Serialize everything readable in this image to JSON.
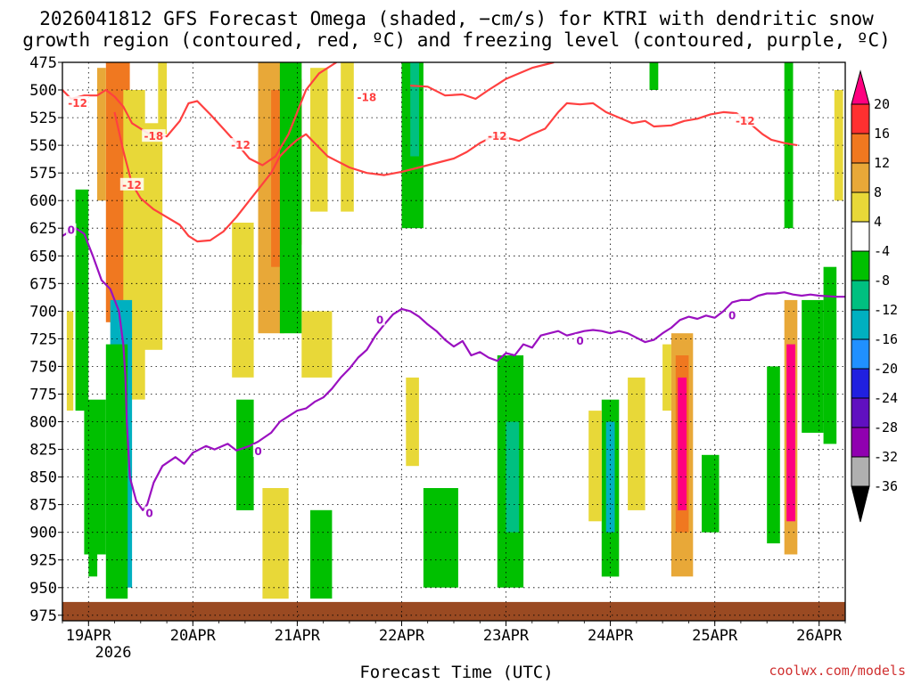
{
  "chart_data": {
    "type": "heatmap",
    "title": "2026041812 GFS Forecast Omega (shaded, −cm/s) for KTRI with dendritic snow",
    "subtitle": "growth region (contoured, red, ºC) and freezing level (contoured, purple, ºC)",
    "xlabel": "Forecast Time (UTC)",
    "ylabel": "",
    "credit": "coolwx.com/models",
    "x_range_hours": [
      0,
      180
    ],
    "y_range_hpa": [
      475,
      980
    ],
    "x_ticks": [
      {
        "label": "19APR",
        "hour": 6
      },
      {
        "label": "20APR",
        "hour": 30
      },
      {
        "label": "21APR",
        "hour": 54
      },
      {
        "label": "22APR",
        "hour": 78
      },
      {
        "label": "23APR",
        "hour": 102
      },
      {
        "label": "24APR",
        "hour": 126
      },
      {
        "label": "25APR",
        "hour": 150
      },
      {
        "label": "26APR",
        "hour": 174
      }
    ],
    "year_label": "2026",
    "y_ticks": [
      475,
      500,
      525,
      550,
      575,
      600,
      625,
      650,
      675,
      700,
      725,
      750,
      775,
      800,
      825,
      850,
      875,
      900,
      925,
      950,
      975
    ],
    "colorbar": {
      "ticks": [
        20,
        16,
        12,
        8,
        4,
        -4,
        -8,
        -12,
        -16,
        -20,
        -24,
        -28,
        -32,
        -36
      ],
      "colors": [
        "#ff0080",
        "#ff3030",
        "#f07820",
        "#e8a838",
        "#e8d838",
        "#ffffff",
        "#00c000",
        "#00c080",
        "#00b0c0",
        "#2090ff",
        "#2020e0",
        "#6010c0",
        "#9000b0",
        "#b0b0b0",
        "#000000"
      ]
    },
    "omega_cells": [
      {
        "t0": 11.5,
        "t1": 13.5,
        "p0": 475,
        "p1": 690,
        "v": 20
      },
      {
        "t0": 10,
        "t1": 15.5,
        "p0": 475,
        "p1": 710,
        "v": 14
      },
      {
        "t0": 8,
        "t1": 10,
        "p0": 480,
        "p1": 600,
        "v": 8
      },
      {
        "t0": 15.5,
        "t1": 23,
        "p0": 530,
        "p1": 735,
        "v": 6
      },
      {
        "t0": 14,
        "t1": 19,
        "p0": 500,
        "p1": 780,
        "v": 6
      },
      {
        "t0": 22,
        "t1": 24,
        "p0": 475,
        "p1": 540,
        "v": 6
      },
      {
        "t0": 12,
        "t1": 14.5,
        "p0": 800,
        "p1": 910,
        "v": -24
      },
      {
        "t0": 11,
        "t1": 16,
        "p0": 690,
        "p1": 950,
        "v": -16
      },
      {
        "t0": 10,
        "t1": 15,
        "p0": 730,
        "p1": 960,
        "v": -8
      },
      {
        "t0": 3,
        "t1": 6,
        "p0": 590,
        "p1": 790,
        "v": -8
      },
      {
        "t0": 5,
        "t1": 10,
        "p0": 780,
        "p1": 920,
        "v": -5
      },
      {
        "t0": 1,
        "t1": 2.5,
        "p0": 700,
        "p1": 790,
        "v": 6
      },
      {
        "t0": 6,
        "t1": 8,
        "p0": 820,
        "p1": 940,
        "v": -8
      },
      {
        "t0": 45,
        "t1": 51,
        "p0": 475,
        "p1": 720,
        "v": 8
      },
      {
        "t0": 52,
        "t1": 55,
        "p0": 475,
        "p1": 700,
        "v": 10
      },
      {
        "t0": 54,
        "t1": 55,
        "p0": 490,
        "p1": 640,
        "v": 16
      },
      {
        "t0": 48,
        "t1": 50,
        "p0": 500,
        "p1": 660,
        "v": 12
      },
      {
        "t0": 57,
        "t1": 61,
        "p0": 480,
        "p1": 610,
        "v": 6
      },
      {
        "t0": 39,
        "t1": 44,
        "p0": 620,
        "p1": 760,
        "v": 6
      },
      {
        "t0": 55,
        "t1": 62,
        "p0": 700,
        "p1": 760,
        "v": 6
      },
      {
        "t0": 50,
        "t1": 55,
        "p0": 475,
        "p1": 720,
        "v": -8
      },
      {
        "t0": 40,
        "t1": 44,
        "p0": 780,
        "p1": 880,
        "v": -8
      },
      {
        "t0": 46,
        "t1": 52,
        "p0": 860,
        "p1": 960,
        "v": 6
      },
      {
        "t0": 57,
        "t1": 62,
        "p0": 880,
        "p1": 960,
        "v": -8
      },
      {
        "t0": 64,
        "t1": 67,
        "p0": 475,
        "p1": 610,
        "v": 6
      },
      {
        "t0": 78,
        "t1": 83,
        "p0": 475,
        "p1": 625,
        "v": -8
      },
      {
        "t0": 80,
        "t1": 82,
        "p0": 475,
        "p1": 560,
        "v": -12
      },
      {
        "t0": 79,
        "t1": 82,
        "p0": 760,
        "p1": 840,
        "v": 6
      },
      {
        "t0": 83,
        "t1": 91,
        "p0": 860,
        "p1": 950,
        "v": -8
      },
      {
        "t0": 100,
        "t1": 106,
        "p0": 740,
        "p1": 950,
        "v": -8
      },
      {
        "t0": 102,
        "t1": 105,
        "p0": 800,
        "p1": 900,
        "v": -12
      },
      {
        "t0": 124,
        "t1": 128,
        "p0": 780,
        "p1": 940,
        "v": -8
      },
      {
        "t0": 125,
        "t1": 127,
        "p0": 800,
        "p1": 900,
        "v": -16
      },
      {
        "t0": 121,
        "t1": 124,
        "p0": 790,
        "p1": 890,
        "v": 6
      },
      {
        "t0": 130,
        "t1": 134,
        "p0": 760,
        "p1": 880,
        "v": 6
      },
      {
        "t0": 138,
        "t1": 140,
        "p0": 730,
        "p1": 790,
        "v": 6
      },
      {
        "t0": 140,
        "t1": 145,
        "p0": 720,
        "p1": 940,
        "v": 8
      },
      {
        "t0": 141,
        "t1": 144,
        "p0": 740,
        "p1": 900,
        "v": 14
      },
      {
        "t0": 141.5,
        "t1": 143.5,
        "p0": 760,
        "p1": 880,
        "v": 20
      },
      {
        "t0": 147,
        "t1": 151,
        "p0": 830,
        "p1": 900,
        "v": -8
      },
      {
        "t0": 135,
        "t1": 137,
        "p0": 475,
        "p1": 500,
        "v": -8
      },
      {
        "t0": 166,
        "t1": 168,
        "p0": 475,
        "p1": 625,
        "v": -8
      },
      {
        "t0": 162,
        "t1": 165,
        "p0": 750,
        "p1": 910,
        "v": -8
      },
      {
        "t0": 166,
        "t1": 169,
        "p0": 690,
        "p1": 920,
        "v": 8
      },
      {
        "t0": 166.5,
        "t1": 168.5,
        "p0": 730,
        "p1": 890,
        "v": 20
      },
      {
        "t0": 170,
        "t1": 175,
        "p0": 690,
        "p1": 810,
        "v": -8
      },
      {
        "t0": 175,
        "t1": 178,
        "p0": 660,
        "p1": 820,
        "v": -8
      },
      {
        "t0": 177.5,
        "t1": 179.5,
        "p0": 500,
        "p1": 600,
        "v": 6
      }
    ],
    "ground_top_hpa": 963,
    "series": [
      {
        "name": "-12 C isotherm (upper)",
        "color": "#ff4040",
        "points": [
          [
            0,
            500
          ],
          [
            2,
            508
          ],
          [
            5,
            505
          ],
          [
            8,
            505
          ],
          [
            10,
            500
          ],
          [
            12,
            506
          ],
          [
            14,
            515
          ],
          [
            16,
            530
          ],
          [
            20,
            540
          ],
          [
            24,
            542
          ],
          [
            27,
            528
          ],
          [
            29,
            512
          ],
          [
            31,
            510
          ],
          [
            34,
            522
          ],
          [
            37,
            535
          ],
          [
            40,
            548
          ],
          [
            43,
            562
          ],
          [
            46,
            568
          ],
          [
            49,
            560
          ],
          [
            52,
            540
          ],
          [
            54,
            520
          ],
          [
            56,
            500
          ],
          [
            59,
            485
          ],
          [
            63,
            475
          ]
        ]
      },
      {
        "name": "-12 C isotherm (lower)",
        "color": "#ff4040",
        "points": [
          [
            12,
            520
          ],
          [
            14,
            555
          ],
          [
            16,
            585
          ],
          [
            18,
            598
          ],
          [
            21,
            608
          ],
          [
            24,
            615
          ],
          [
            27,
            622
          ],
          [
            29,
            632
          ],
          [
            31,
            637
          ],
          [
            34,
            636
          ],
          [
            37,
            628
          ],
          [
            40,
            615
          ],
          [
            43,
            600
          ],
          [
            46,
            585
          ],
          [
            48,
            575
          ],
          [
            50,
            560
          ],
          [
            52,
            552
          ],
          [
            54,
            545
          ],
          [
            56,
            540
          ],
          [
            58,
            548
          ],
          [
            61,
            560
          ],
          [
            66,
            570
          ],
          [
            70,
            575
          ],
          [
            74,
            577
          ],
          [
            78,
            574
          ],
          [
            82,
            570
          ],
          [
            86,
            566
          ],
          [
            90,
            562
          ],
          [
            93,
            556
          ],
          [
            96,
            548
          ],
          [
            99,
            542
          ],
          [
            102,
            543
          ],
          [
            105,
            546
          ],
          [
            108,
            540
          ],
          [
            111,
            535
          ],
          [
            114,
            520
          ],
          [
            116,
            512
          ],
          [
            119,
            513
          ],
          [
            122,
            512
          ],
          [
            125,
            520
          ],
          [
            128,
            525
          ],
          [
            131,
            530
          ],
          [
            134,
            528
          ],
          [
            136,
            533
          ],
          [
            140,
            532
          ],
          [
            143,
            528
          ],
          [
            146,
            526
          ],
          [
            149,
            522
          ],
          [
            152,
            520
          ],
          [
            155,
            521
          ],
          [
            158,
            530
          ],
          [
            161,
            540
          ],
          [
            163,
            545
          ],
          [
            166,
            548
          ],
          [
            169,
            550
          ]
        ]
      },
      {
        "name": "-18 C isotherm",
        "color": "#ff4040",
        "points": [
          [
            80,
            496
          ],
          [
            84,
            497
          ],
          [
            88,
            505
          ],
          [
            92,
            504
          ],
          [
            95,
            508
          ],
          [
            98,
            500
          ],
          [
            100,
            495
          ],
          [
            102,
            490
          ],
          [
            105,
            485
          ],
          [
            108,
            480
          ],
          [
            111,
            477
          ],
          [
            113,
            475
          ]
        ]
      },
      {
        "name": "0 C freezing level",
        "color": "#9a10c0",
        "points": [
          [
            0,
            632
          ],
          [
            3,
            625
          ],
          [
            5,
            630
          ],
          [
            7,
            650
          ],
          [
            9,
            672
          ],
          [
            11,
            680
          ],
          [
            13,
            700
          ],
          [
            14,
            730
          ],
          [
            14.5,
            760
          ],
          [
            14.8,
            800
          ],
          [
            15.5,
            850
          ],
          [
            17,
            872
          ],
          [
            18.5,
            880
          ],
          [
            19.5,
            875
          ],
          [
            21,
            855
          ],
          [
            23,
            840
          ],
          [
            26,
            832
          ],
          [
            28,
            838
          ],
          [
            30,
            828
          ],
          [
            33,
            822
          ],
          [
            35,
            825
          ],
          [
            38,
            820
          ],
          [
            40,
            826
          ],
          [
            43,
            822
          ],
          [
            45,
            818
          ],
          [
            48,
            810
          ],
          [
            50,
            800
          ],
          [
            52,
            795
          ],
          [
            54,
            790
          ],
          [
            56,
            788
          ],
          [
            58,
            782
          ],
          [
            60,
            778
          ],
          [
            62,
            770
          ],
          [
            64,
            760
          ],
          [
            66,
            752
          ],
          [
            68,
            742
          ],
          [
            70,
            735
          ],
          [
            72,
            722
          ],
          [
            74,
            712
          ],
          [
            76,
            703
          ],
          [
            78,
            698
          ],
          [
            80,
            700
          ],
          [
            82,
            705
          ],
          [
            84,
            712
          ],
          [
            86,
            718
          ],
          [
            88,
            726
          ],
          [
            90,
            732
          ],
          [
            92,
            727
          ],
          [
            94,
            740
          ],
          [
            96,
            737
          ],
          [
            98,
            742
          ],
          [
            100,
            745
          ],
          [
            102,
            738
          ],
          [
            104,
            740
          ],
          [
            106,
            730
          ],
          [
            108,
            733
          ],
          [
            110,
            722
          ],
          [
            112,
            720
          ],
          [
            114,
            718
          ],
          [
            116,
            722
          ],
          [
            118,
            720
          ],
          [
            120,
            718
          ],
          [
            122,
            717
          ],
          [
            124,
            718
          ],
          [
            126,
            720
          ],
          [
            128,
            718
          ],
          [
            130,
            720
          ],
          [
            132,
            724
          ],
          [
            134,
            728
          ],
          [
            136,
            726
          ],
          [
            138,
            720
          ],
          [
            140,
            715
          ],
          [
            142,
            708
          ],
          [
            144,
            705
          ],
          [
            146,
            707
          ],
          [
            148,
            704
          ],
          [
            150,
            706
          ],
          [
            152,
            700
          ],
          [
            154,
            692
          ],
          [
            156,
            690
          ],
          [
            158,
            690
          ],
          [
            160,
            686
          ],
          [
            162,
            684
          ],
          [
            164,
            684
          ],
          [
            166,
            683
          ],
          [
            168,
            685
          ],
          [
            170,
            686
          ],
          [
            172,
            685
          ],
          [
            174,
            686
          ],
          [
            178,
            687
          ],
          [
            180,
            687
          ]
        ]
      }
    ],
    "contour_labels": [
      {
        "text": "-12",
        "t": 3.5,
        "p": 512,
        "color": "#ff4040"
      },
      {
        "text": "-18",
        "t": 21,
        "p": 542,
        "color": "#ff4040"
      },
      {
        "text": "-12",
        "t": 16,
        "p": 586,
        "color": "#ff4040"
      },
      {
        "text": "-12",
        "t": 41,
        "p": 550,
        "color": "#ff4040"
      },
      {
        "text": "-18",
        "t": 70,
        "p": 507,
        "color": "#ff4040"
      },
      {
        "text": "-12",
        "t": 100,
        "p": 542,
        "color": "#ff4040"
      },
      {
        "text": "-12",
        "t": 157,
        "p": 528,
        "color": "#ff4040"
      },
      {
        "text": "0",
        "t": 2,
        "p": 627,
        "color": "#9a10c0"
      },
      {
        "text": "0",
        "t": 20,
        "p": 883,
        "color": "#9a10c0"
      },
      {
        "text": "0",
        "t": 45,
        "p": 827,
        "color": "#9a10c0"
      },
      {
        "text": "0",
        "t": 73,
        "p": 708,
        "color": "#9a10c0"
      },
      {
        "text": "0",
        "t": 119,
        "p": 727,
        "color": "#9a10c0"
      },
      {
        "text": "0",
        "t": 154,
        "p": 704,
        "color": "#9a10c0"
      }
    ]
  }
}
